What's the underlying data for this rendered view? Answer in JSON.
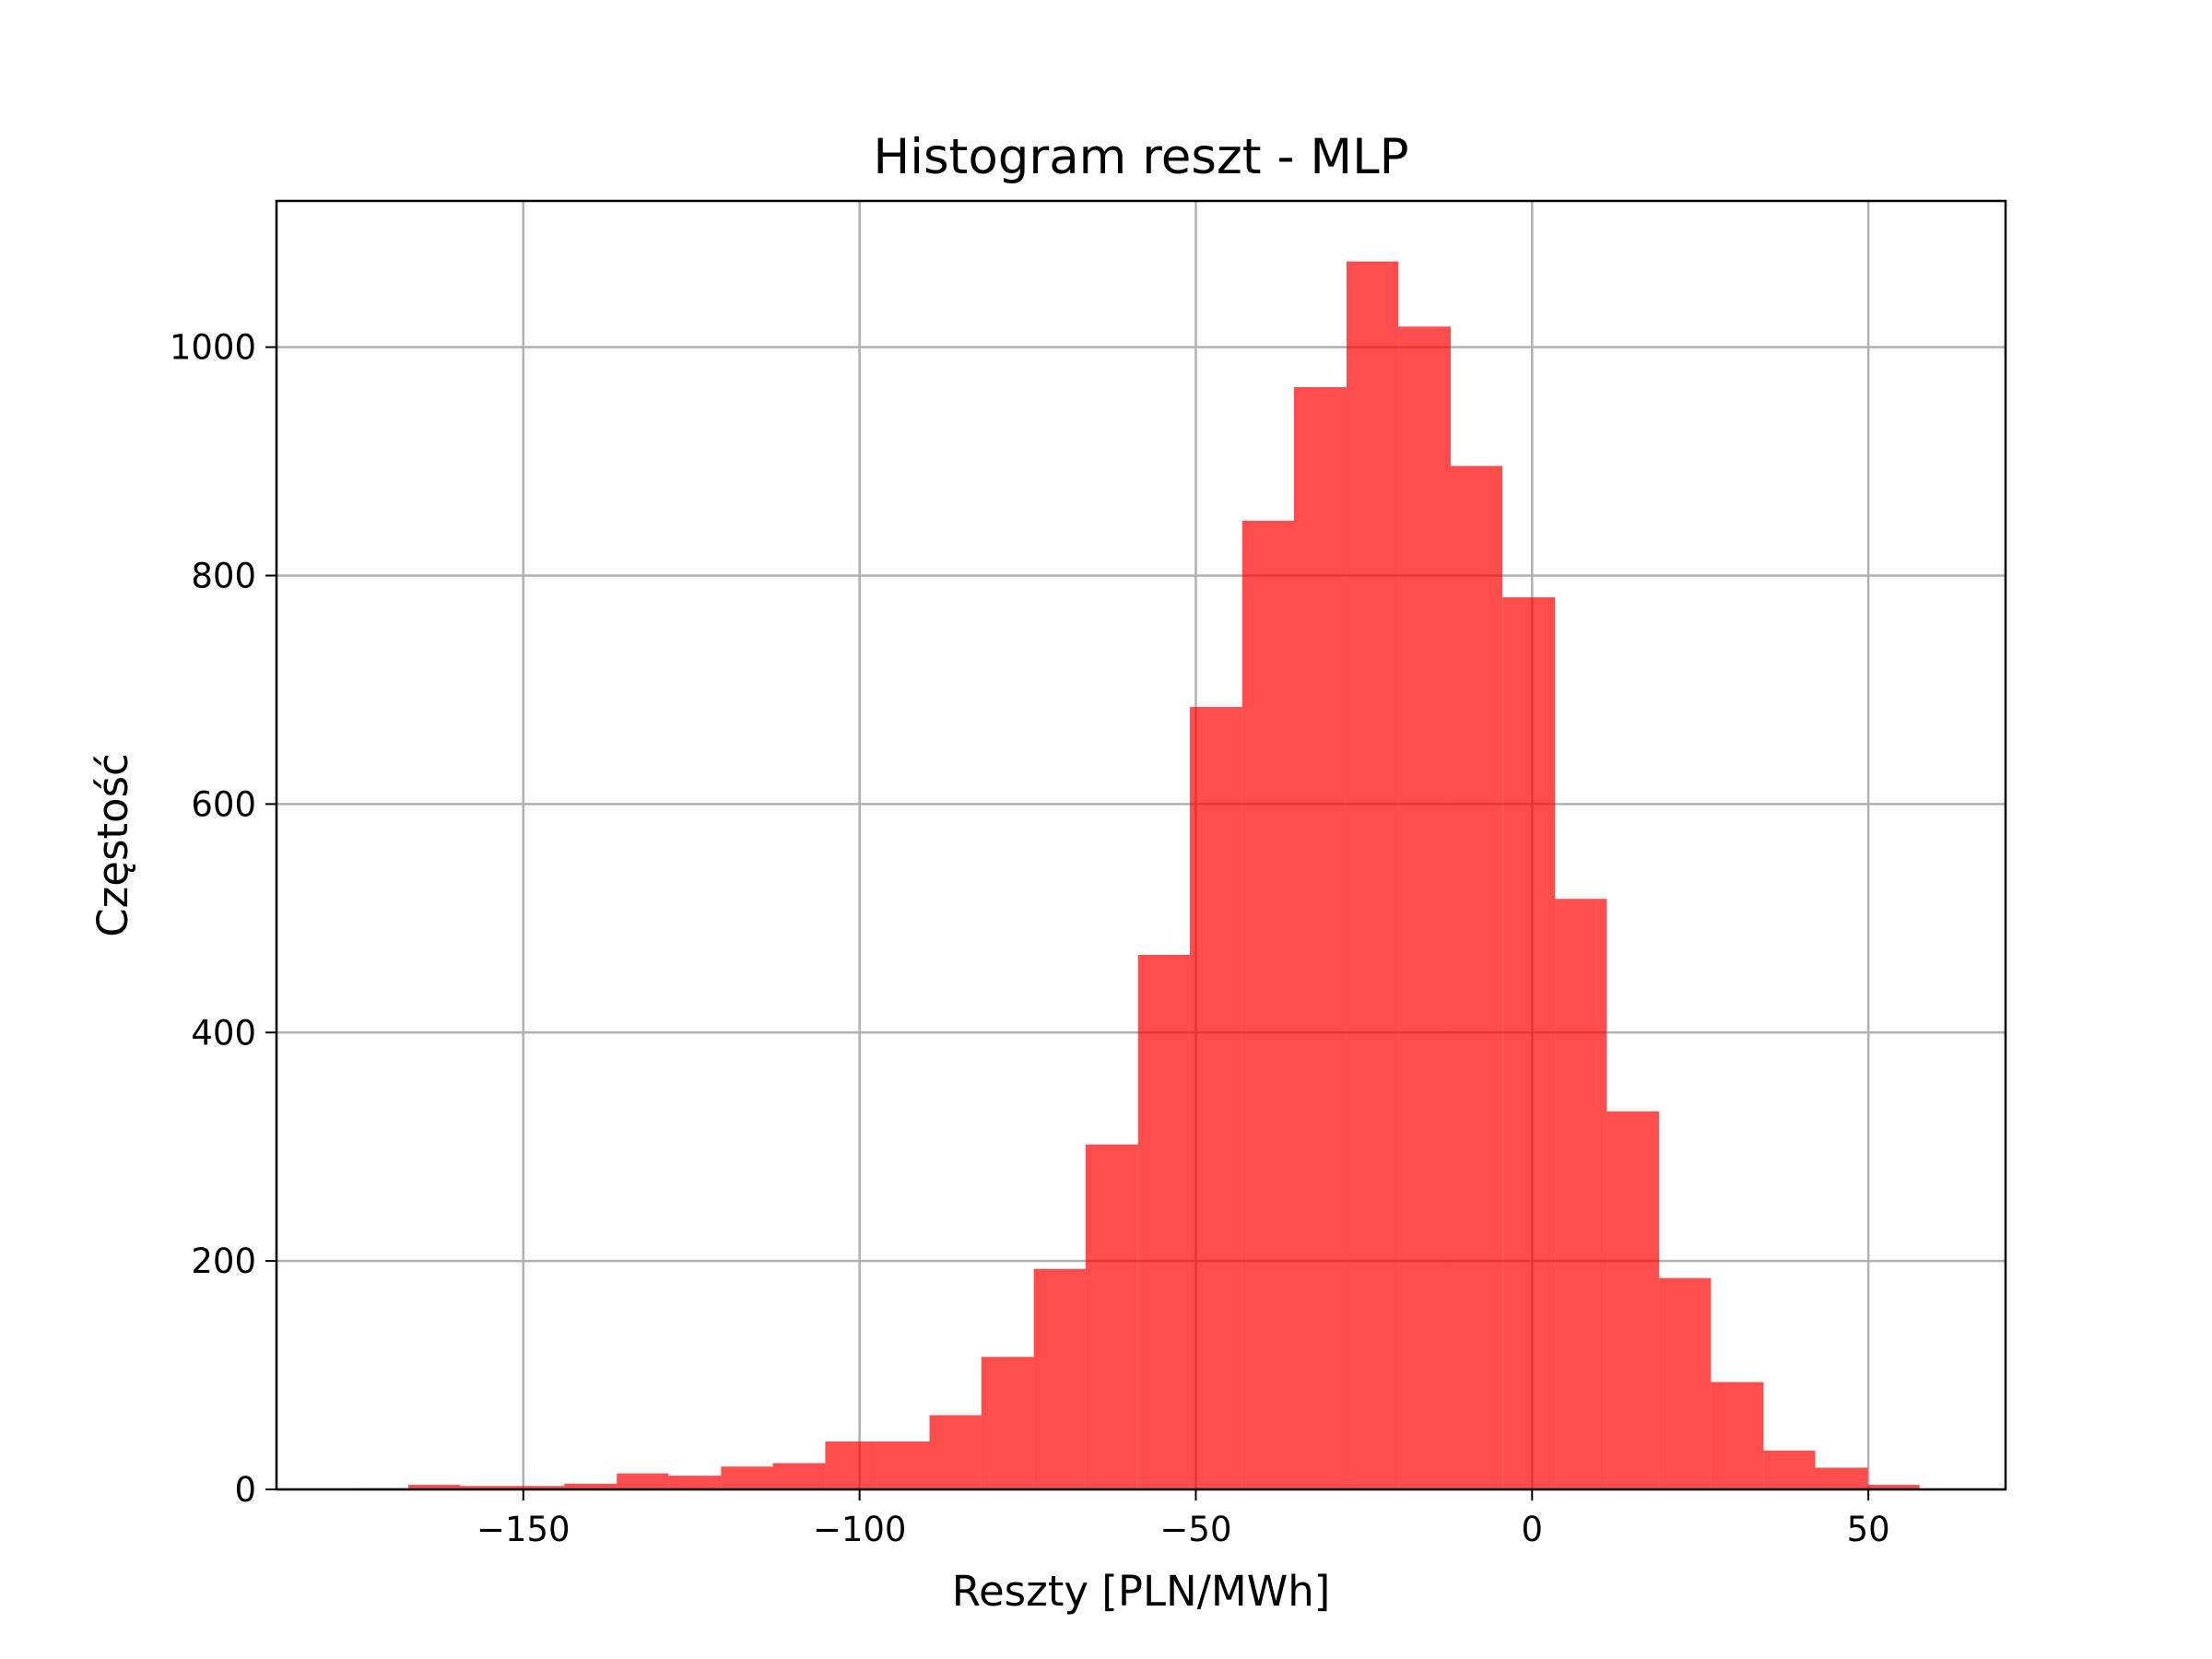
{
  "chart_data": {
    "type": "bar",
    "title": "Histogram reszt - MLP",
    "xlabel": "Reszty [PLN/MWh]",
    "ylabel": "Częstość",
    "xlim": [
      -186.7,
      70.4
    ],
    "ylim": [
      0,
      1128
    ],
    "grid": true,
    "bar_color": "#ff0000",
    "bar_opacity": 0.7,
    "x_ticks": [
      {
        "value": -150,
        "label": "−150"
      },
      {
        "value": -100,
        "label": "−100"
      },
      {
        "value": -50,
        "label": "−50"
      },
      {
        "value": 0,
        "label": "0"
      },
      {
        "value": 50,
        "label": "50"
      }
    ],
    "y_ticks": [
      {
        "value": 0,
        "label": "0"
      },
      {
        "value": 200,
        "label": "200"
      },
      {
        "value": 400,
        "label": "400"
      },
      {
        "value": 600,
        "label": "600"
      },
      {
        "value": 800,
        "label": "800"
      },
      {
        "value": 1000,
        "label": "1000"
      }
    ],
    "bins": [
      {
        "x0": -174.8,
        "x1": -167.1,
        "count": 1
      },
      {
        "x0": -167.1,
        "x1": -159.4,
        "count": 4
      },
      {
        "x0": -159.4,
        "x1": -151.6,
        "count": 3
      },
      {
        "x0": -151.6,
        "x1": -143.9,
        "count": 3
      },
      {
        "x0": -143.9,
        "x1": -136.1,
        "count": 5
      },
      {
        "x0": -136.1,
        "x1": -128.4,
        "count": 14
      },
      {
        "x0": -128.4,
        "x1": -120.6,
        "count": 12
      },
      {
        "x0": -120.6,
        "x1": -112.9,
        "count": 20
      },
      {
        "x0": -112.9,
        "x1": -105.1,
        "count": 23
      },
      {
        "x0": -105.1,
        "x1": -97.4,
        "count": 42
      },
      {
        "x0": -97.4,
        "x1": -89.6,
        "count": 42
      },
      {
        "x0": -89.6,
        "x1": -81.9,
        "count": 65
      },
      {
        "x0": -81.9,
        "x1": -74.1,
        "count": 116
      },
      {
        "x0": -74.1,
        "x1": -66.4,
        "count": 193
      },
      {
        "x0": -66.4,
        "x1": -58.6,
        "count": 302
      },
      {
        "x0": -58.6,
        "x1": -50.9,
        "count": 468
      },
      {
        "x0": -50.9,
        "x1": -43.1,
        "count": 685
      },
      {
        "x0": -43.1,
        "x1": -35.4,
        "count": 848
      },
      {
        "x0": -35.4,
        "x1": -27.6,
        "count": 965
      },
      {
        "x0": -27.6,
        "x1": -19.9,
        "count": 1075
      },
      {
        "x0": -19.9,
        "x1": -12.1,
        "count": 1018
      },
      {
        "x0": -12.1,
        "x1": -4.4,
        "count": 896
      },
      {
        "x0": -4.4,
        "x1": 3.4,
        "count": 781
      },
      {
        "x0": 3.4,
        "x1": 11.1,
        "count": 517
      },
      {
        "x0": 11.1,
        "x1": 18.9,
        "count": 331
      },
      {
        "x0": 18.9,
        "x1": 26.6,
        "count": 185
      },
      {
        "x0": 26.6,
        "x1": 34.4,
        "count": 94
      },
      {
        "x0": 34.4,
        "x1": 42.1,
        "count": 34
      },
      {
        "x0": 42.1,
        "x1": 49.9,
        "count": 19
      },
      {
        "x0": 49.9,
        "x1": 57.6,
        "count": 4
      }
    ]
  }
}
